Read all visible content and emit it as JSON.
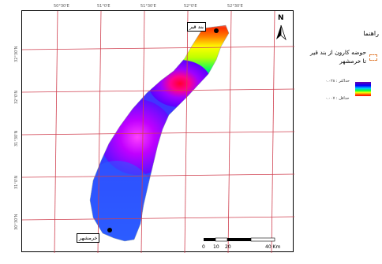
{
  "map": {
    "north_label": "N",
    "grid_top_labels": [
      "50°30'E",
      "51°0'E",
      "51°30'E",
      "52°0'E",
      "52°30'E"
    ],
    "grid_left_labels": [
      "32°30'N",
      "32°0'N",
      "31°30'N",
      "31°0'N",
      "30°30'N",
      "30°0'N"
    ],
    "cities": [
      {
        "name": "بند قیر"
      },
      {
        "name": "خرمشهر"
      }
    ],
    "scale": {
      "ticks": [
        "0",
        "10",
        "20",
        "40 Km"
      ]
    }
  },
  "legend": {
    "title": "راهنما",
    "area_label": "حوضه کارون از بند قیر",
    "area_label_2": "تا خرمشهر",
    "ramp_high": "حداکثر : ۰.۰۲۸",
    "ramp_low": "حداقل : ۰.۰۰۷",
    "colors": {
      "high": "#ff0000",
      "low": "#6a00a8",
      "box": "#e07a30"
    }
  }
}
